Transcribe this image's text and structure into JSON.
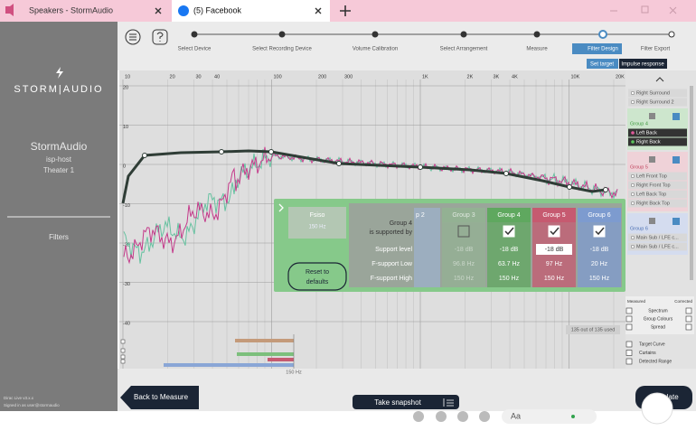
{
  "browser": {
    "tabs": [
      "Speakers - StormAudio",
      "(5) Facebook"
    ]
  },
  "sidebar": {
    "brand": "STORM|AUDIO",
    "device": "StormAudio",
    "host": "isp-host",
    "theater": "Theater 1",
    "section": "Filters",
    "version": "Dirac Live v3.x.x",
    "account": "Signed in as user@stormaudio"
  },
  "toolbar": {
    "steps": [
      "Select Device",
      "Select Recording Device",
      "Volume Calibration",
      "Select Arrangement",
      "Measure",
      "Filter Design",
      "Filter Export"
    ],
    "buttons": [
      "Set target",
      "Impulse response"
    ]
  },
  "graph": {
    "x_labels": [
      "10",
      "20",
      "30",
      "40",
      "100",
      "200",
      "300",
      "1K",
      "2K",
      "3K",
      "4K",
      "10K",
      "20K"
    ],
    "y_labels": [
      "20",
      "10",
      "0",
      "-10",
      "-20",
      "-30",
      "-40"
    ],
    "usage": "135 out of 135 used",
    "crossover": "150 Hz"
  },
  "support_panel": {
    "fsiso_label": "Fsiso",
    "fsiso_value": "150 Hz",
    "reset": "Reset to defaults",
    "title": "Group 4",
    "subtitle": "is supported by",
    "rows": [
      "Support level",
      "F-support Low",
      "F-support High"
    ],
    "partial_column": "p 2",
    "columns": [
      {
        "name": "Group 3",
        "color": "#93b193",
        "checked": false,
        "values": [
          "-18 dB",
          "96.8 Hz",
          "150 Hz"
        ]
      },
      {
        "name": "Group 4",
        "color": "#5fa85f",
        "checked": true,
        "values": [
          "-18 dB",
          "63.7 Hz",
          "150 Hz"
        ]
      },
      {
        "name": "Group 5",
        "color": "#c65a70",
        "checked": true,
        "values": [
          "-18 dB",
          "97 Hz",
          "150 Hz"
        ]
      },
      {
        "name": "Group 6",
        "color": "#7d9bcf",
        "checked": true,
        "values": [
          "-18 dB",
          "20 Hz",
          "150 Hz"
        ]
      }
    ]
  },
  "groups_panel": {
    "ungrouped": [
      "Right Surround",
      "Right Surround 2"
    ],
    "groups": [
      {
        "name": "Group 4",
        "color": "#3f9a3f",
        "bg": "#cde6cd",
        "items": [
          "Left Back",
          "Right Back"
        ]
      },
      {
        "name": "Group 5",
        "color": "#c0445e",
        "bg": "#efd2d8",
        "items": [
          "Left Front Top",
          "Right Front Top",
          "Left Back Top",
          "Right Back Top"
        ]
      },
      {
        "name": "Group 6",
        "color": "#4b6fb3",
        "bg": "#d4dcef",
        "items": [
          "Main Sub / LFE c...",
          "Main Sub / LFE c..."
        ]
      }
    ],
    "display_headers": [
      "Measured",
      "Corrected"
    ],
    "display_rows": [
      "Spectrum",
      "Group Colours",
      "Spread"
    ],
    "curve_options": [
      "Target Curve",
      "Curtains",
      "Detected Range"
    ]
  },
  "footer": {
    "back": "Back to Measure",
    "snapshot": "Take snapshot",
    "calculate": "Calculate",
    "chat_input": "Aa"
  }
}
